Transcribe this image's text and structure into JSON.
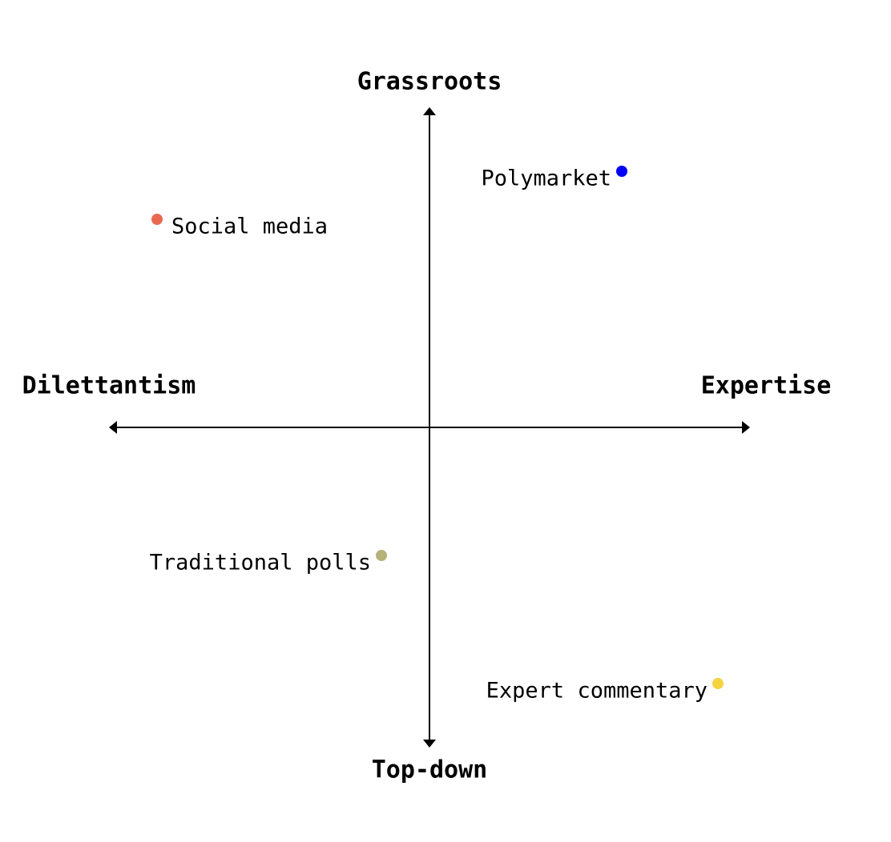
{
  "chart_data": {
    "type": "scatter",
    "y_top_label": "Grassroots",
    "y_bottom_label": "Top-down",
    "x_left_label": "Dilettantism",
    "x_right_label": "Expertise",
    "xlim": [
      -1,
      1
    ],
    "ylim": [
      -1,
      1
    ],
    "series": [
      {
        "name": "Polymarket",
        "color": "#0000ff",
        "x": [
          0.6
        ],
        "y": [
          0.8
        ]
      },
      {
        "name": "Social media",
        "color": "#e8694f",
        "x": [
          -0.85
        ],
        "y": [
          0.65
        ]
      },
      {
        "name": "Traditional polls",
        "color": "#b5b27a",
        "x": [
          -0.15
        ],
        "y": [
          -0.4
        ]
      },
      {
        "name": "Expert commentary",
        "color": "#f5d33f",
        "x": [
          0.9
        ],
        "y": [
          -0.8
        ]
      }
    ]
  }
}
